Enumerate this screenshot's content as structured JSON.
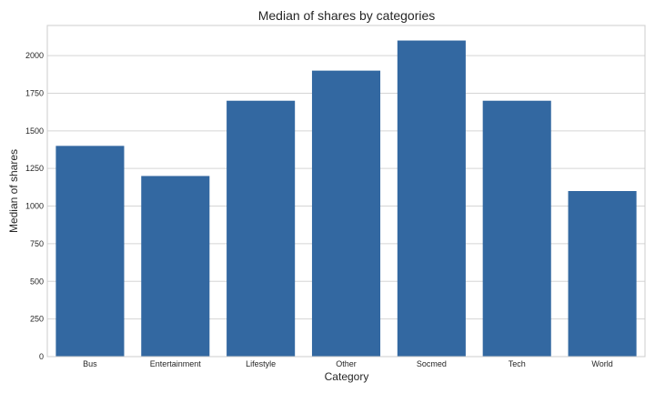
{
  "chart_data": {
    "type": "bar",
    "title": "Median of shares by categories",
    "xlabel": "Category",
    "ylabel": "Median of shares",
    "categories": [
      "Bus",
      "Entertainment",
      "Lifestyle",
      "Other",
      "Socmed",
      "Tech",
      "World"
    ],
    "values": [
      1400,
      1200,
      1700,
      1900,
      2100,
      1700,
      1100
    ],
    "ylim": [
      0,
      2200
    ],
    "yticks": [
      0,
      250,
      500,
      750,
      1000,
      1250,
      1500,
      1750,
      2000
    ],
    "grid": true,
    "colors": {
      "bar": "#3368a1",
      "grid": "#d5d5d5",
      "frame": "#cccccc"
    }
  }
}
